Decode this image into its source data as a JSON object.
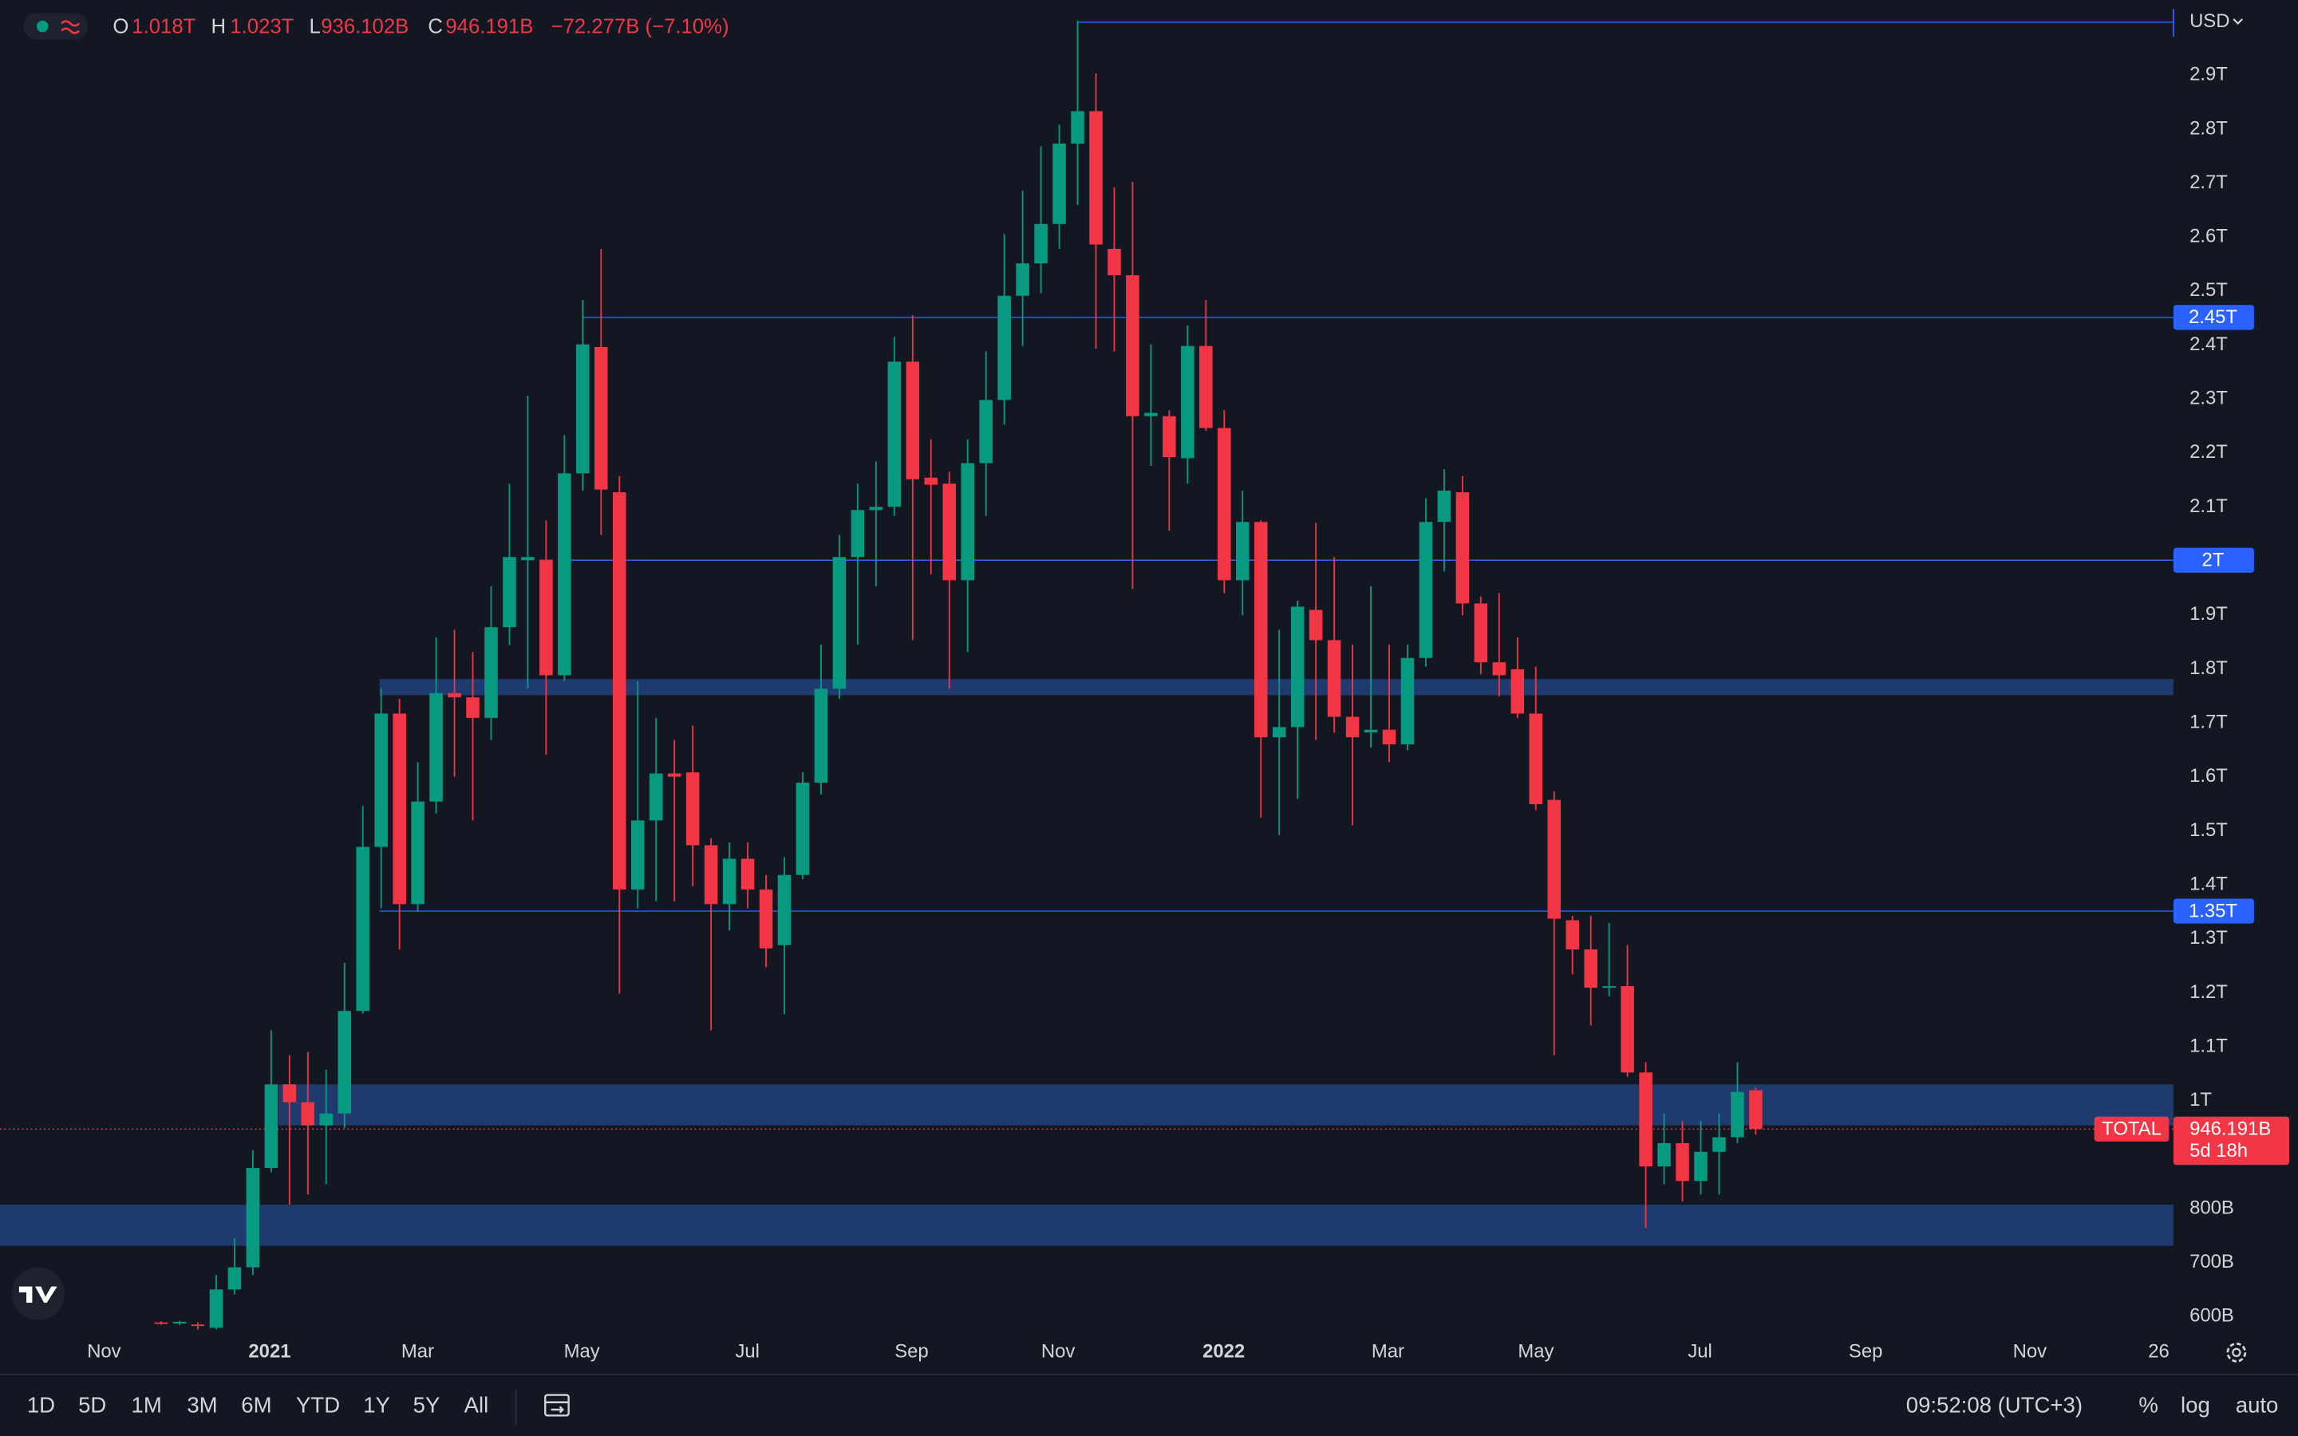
{
  "chart_data": {
    "type": "candlestick",
    "ohlc_legend": {
      "open_key": "O",
      "open": "1.018T",
      "high_key": "H",
      "high": "1.023T",
      "low_key": "L",
      "low": "936.102B",
      "close_key": "C",
      "close": "946.191B",
      "change": "−72.277B (−7.10%)"
    },
    "currency": "USD",
    "up_color": "#089981",
    "down_color": "#f23645",
    "open": [
      588,
      586,
      584,
      578,
      649,
      690,
      874,
      1029,
      996,
      953,
      975,
      1165,
      1469,
      1716,
      1363,
      1553,
      1754,
      1746,
      1708,
      1876,
      2000,
      2001,
      1787,
      2161,
      2395,
      2126,
      1390,
      1518,
      1605,
      1607,
      1472,
      1363,
      1447,
      1390,
      1287,
      1417,
      1588,
      1762,
      2006,
      2093,
      2099,
      2368,
      2153,
      2142,
      1963,
      2180,
      2297,
      2490,
      2550,
      2623,
      2772,
      2832,
      2577,
      2528,
      2267,
      2267,
      2189,
      2397,
      2245,
      1963,
      2071,
      1672,
      1691,
      1908,
      1852,
      1710,
      1681,
      1686,
      1659,
      1819,
      2071,
      2126,
      1920,
      1811,
      1798,
      1716,
      1556,
      1333,
      1279,
      1208,
      1211,
      1051,
      877,
      920,
      850,
      904,
      931,
      1018
    ],
    "high": [
      590,
      591,
      588,
      676,
      744,
      907,
      1129,
      1083,
      1089,
      1056,
      1254,
      1545,
      1762,
      1743,
      1626,
      1857,
      1871,
      1830,
      1952,
      2142,
      2305,
      2074,
      2232,
      2482,
      2577,
      2156,
      1776,
      1708,
      1667,
      1694,
      1485,
      1477,
      1477,
      1417,
      1450,
      1607,
      1844,
      2047,
      2142,
      2183,
      2414,
      2454,
      2224,
      2164,
      2224,
      2387,
      2604,
      2685,
      2767,
      2807,
      3000,
      2902,
      2691,
      2701,
      2400,
      2278,
      2435,
      2482,
      2278,
      2129,
      2074,
      1871,
      1925,
      2069,
      2006,
      1844,
      1952,
      1844,
      1844,
      2115,
      2169,
      2156,
      1933,
      1939,
      1857,
      1803,
      1572,
      1341,
      1341,
      1328,
      1287,
      1070,
      975,
      961,
      961,
      975,
      1070,
      1023
    ],
    "low": [
      584,
      583,
      575,
      575,
      640,
      676,
      866,
      806,
      825,
      844,
      948,
      1160,
      1355,
      1279,
      1349,
      1531,
      1599,
      1518,
      1667,
      1843,
      1762,
      1640,
      1776,
      2129,
      2047,
      1197,
      1355,
      1368,
      1368,
      1396,
      1129,
      1314,
      1355,
      1246,
      1159,
      1409,
      1566,
      1743,
      1844,
      1952,
      2082,
      1852,
      1974,
      1762,
      1830,
      2082,
      2251,
      2397,
      2495,
      2577,
      2658,
      2392,
      2387,
      1947,
      2175,
      2055,
      2142,
      2240,
      1939,
      1898,
      1523,
      1491,
      1558,
      1667,
      1681,
      1509,
      1653,
      1626,
      1648,
      1803,
      1979,
      1898,
      1789,
      1748,
      1708,
      1537,
      1083,
      1233,
      1138,
      1192,
      1043,
      763,
      844,
      812,
      825,
      825,
      920,
      936.102
    ],
    "close": [
      586,
      589,
      582,
      649,
      690,
      874,
      1029,
      996,
      953,
      975,
      1165,
      1469,
      1716,
      1363,
      1553,
      1754,
      1746,
      1708,
      1876,
      2006,
      2006,
      1787,
      2161,
      2400,
      2131,
      1390,
      1518,
      1605,
      1599,
      1472,
      1363,
      1447,
      1390,
      1281,
      1417,
      1588,
      1762,
      2006,
      2093,
      2099,
      2368,
      2150,
      2140,
      1963,
      2180,
      2297,
      2490,
      2550,
      2623,
      2772,
      2832,
      2585,
      2528,
      2267,
      2273,
      2191,
      2397,
      2245,
      1963,
      2071,
      1672,
      1691,
      1914,
      1852,
      1710,
      1672,
      1686,
      1659,
      1819,
      2071,
      2129,
      1920,
      1811,
      1787,
      1716,
      1548,
      1336,
      1279,
      1208,
      1211,
      1051,
      877,
      920,
      850,
      904,
      931,
      1015,
      946.191
    ],
    "ylim": [
      573,
      3038
    ],
    "yticks": [
      {
        "value": 600,
        "label": "600B"
      },
      {
        "value": 700,
        "label": "700B"
      },
      {
        "value": 800,
        "label": "800B"
      },
      {
        "value": 1000,
        "label": "1T"
      },
      {
        "value": 1100,
        "label": "1.1T"
      },
      {
        "value": 1200,
        "label": "1.2T"
      },
      {
        "value": 1300,
        "label": "1.3T"
      },
      {
        "value": 1400,
        "label": "1.4T"
      },
      {
        "value": 1500,
        "label": "1.5T"
      },
      {
        "value": 1600,
        "label": "1.6T"
      },
      {
        "value": 1700,
        "label": "1.7T"
      },
      {
        "value": 1800,
        "label": "1.8T"
      },
      {
        "value": 1900,
        "label": "1.9T"
      },
      {
        "value": 2100,
        "label": "2.1T"
      },
      {
        "value": 2200,
        "label": "2.2T"
      },
      {
        "value": 2300,
        "label": "2.3T"
      },
      {
        "value": 2400,
        "label": "2.4T"
      },
      {
        "value": 2500,
        "label": "2.5T"
      },
      {
        "value": 2600,
        "label": "2.6T"
      },
      {
        "value": 2700,
        "label": "2.7T"
      },
      {
        "value": 2800,
        "label": "2.8T"
      },
      {
        "value": 2900,
        "label": "2.9T"
      }
    ],
    "x_labels": [
      "Nov",
      "2021",
      "Mar",
      "May",
      "Jul",
      "Sep",
      "Nov",
      "2022",
      "Mar",
      "May",
      "Jul",
      "Sep",
      "Nov",
      "26"
    ],
    "levels": [
      {
        "value": 2450,
        "label": "2.45T"
      },
      {
        "value": 2000,
        "label": "2T"
      },
      {
        "value": 1350,
        "label": "1.35T"
      }
    ],
    "top_line": 2997,
    "zones": [
      {
        "low": 1750,
        "high": 1780
      },
      {
        "low": 953,
        "high": 1029
      },
      {
        "low": 730,
        "high": 806
      }
    ],
    "last_price": {
      "series_name": "TOTAL",
      "value": 946.191,
      "label": "946.191B",
      "countdown": "5d 18h"
    }
  },
  "toolbar": {
    "ranges": [
      "1D",
      "5D",
      "1M",
      "3M",
      "6M",
      "YTD",
      "1Y",
      "5Y",
      "All"
    ],
    "clock": "09:52:08 (UTC+3)",
    "scale_options": [
      "%",
      "log",
      "auto"
    ]
  }
}
